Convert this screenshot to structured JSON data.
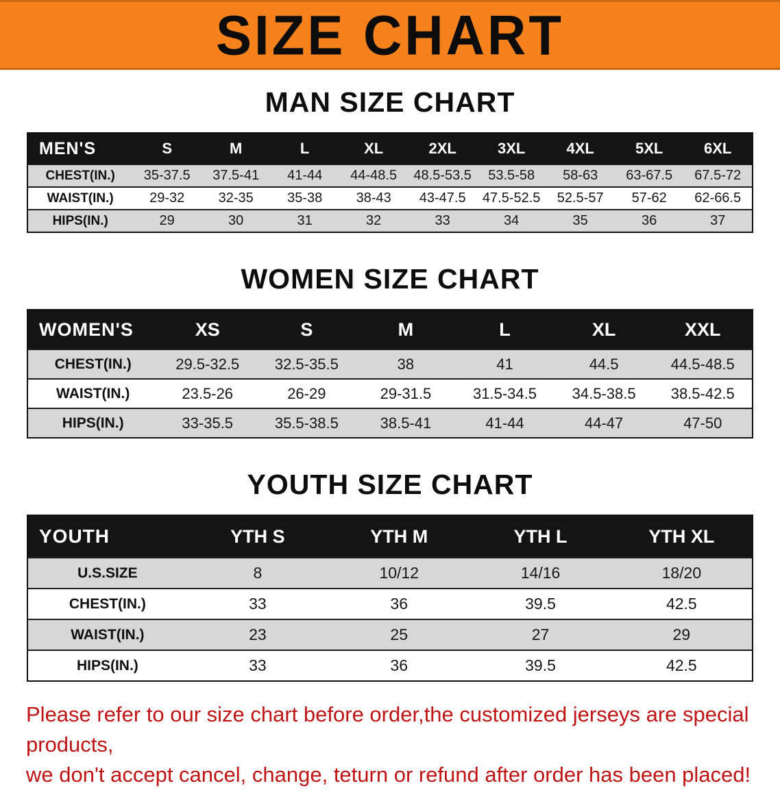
{
  "banner": {
    "title": "SIZE CHART"
  },
  "colors": {
    "banner_bg": "#f5821c",
    "note_text": "#bf1414",
    "table_header_bg": "#141414",
    "shaded_row_bg": "#d7d7d7"
  },
  "sections": [
    {
      "heading": "MAN SIZE CHART",
      "header_label": "MEN'S",
      "columns": [
        "S",
        "M",
        "L",
        "XL",
        "2XL",
        "3XL",
        "4XL",
        "5XL",
        "6XL"
      ],
      "rows": [
        {
          "label": "CHEST(IN.)",
          "values": [
            "35-37.5",
            "37.5-41",
            "41-44",
            "44-48.5",
            "48.5-53.5",
            "53.5-58",
            "58-63",
            "63-67.5",
            "67.5-72"
          ]
        },
        {
          "label": "WAIST(IN.)",
          "values": [
            "29-32",
            "32-35",
            "35-38",
            "38-43",
            "43-47.5",
            "47.5-52.5",
            "52.5-57",
            "57-62",
            "62-66.5"
          ]
        },
        {
          "label": "HIPS(IN.)",
          "values": [
            "29",
            "30",
            "31",
            "32",
            "33",
            "34",
            "35",
            "36",
            "37"
          ]
        }
      ]
    },
    {
      "heading": "WOMEN SIZE CHART",
      "header_label": "WOMEN'S",
      "columns": [
        "XS",
        "S",
        "M",
        "L",
        "XL",
        "XXL"
      ],
      "rows": [
        {
          "label": "CHEST(IN.)",
          "values": [
            "29.5-32.5",
            "32.5-35.5",
            "38",
            "41",
            "44.5",
            "44.5-48.5"
          ]
        },
        {
          "label": "WAIST(IN.)",
          "values": [
            "23.5-26",
            "26-29",
            "29-31.5",
            "31.5-34.5",
            "34.5-38.5",
            "38.5-42.5"
          ]
        },
        {
          "label": "HIPS(IN.)",
          "values": [
            "33-35.5",
            "35.5-38.5",
            "38.5-41",
            "41-44",
            "44-47",
            "47-50"
          ]
        }
      ]
    },
    {
      "heading": "YOUTH SIZE CHART",
      "header_label": "YOUTH",
      "columns": [
        "YTH S",
        "YTH M",
        "YTH L",
        "YTH XL"
      ],
      "rows": [
        {
          "label": "U.S.SIZE",
          "values": [
            "8",
            "10/12",
            "14/16",
            "18/20"
          ]
        },
        {
          "label": "CHEST(IN.)",
          "values": [
            "33",
            "36",
            "39.5",
            "42.5"
          ]
        },
        {
          "label": "WAIST(IN.)",
          "values": [
            "23",
            "25",
            "27",
            "29"
          ]
        },
        {
          "label": "HIPS(IN.)",
          "values": [
            "33",
            "36",
            "39.5",
            "42.5"
          ]
        }
      ]
    }
  ],
  "note": {
    "lines": [
      "Please refer to our size chart before order,the customized jerseys are special products,",
      "we don't accept cancel, change, teturn or refund after order has been placed!"
    ]
  }
}
